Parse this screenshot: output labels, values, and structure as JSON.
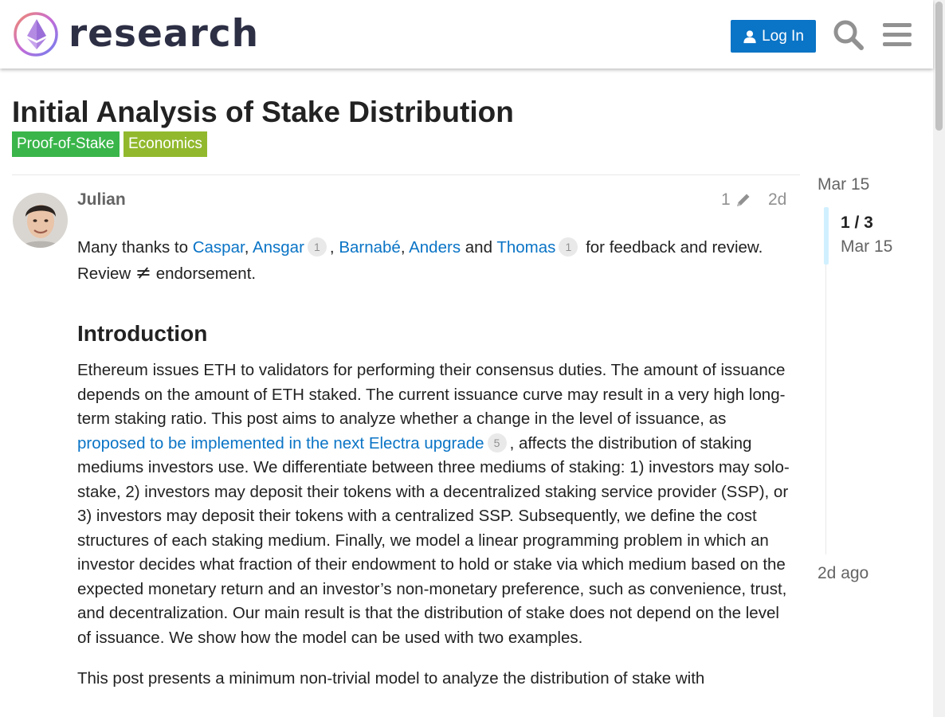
{
  "header": {
    "site_name": "research",
    "login_label": "Log In",
    "icons": {
      "logo": "ethereum-research-logo",
      "login": "user-icon",
      "search": "search-icon",
      "menu": "hamburger-menu-icon"
    },
    "colors": {
      "login_bg": "#0a74c6"
    }
  },
  "topic": {
    "title": "Initial Analysis of Stake Distribution",
    "categories": [
      {
        "label": "Proof-of-Stake",
        "color": "#3ab54a"
      },
      {
        "label": "Economics",
        "color": "#92b92e"
      }
    ]
  },
  "post": {
    "username": "Julian",
    "edit_count": "1",
    "age": "2d",
    "intro": {
      "thanks_prefix": "Many thanks to ",
      "names": [
        "Caspar",
        "Ansgar",
        "Barnabé",
        "Anders",
        "Thomas"
      ],
      "ansgar_badge": "1",
      "thomas_badge": "1",
      "sep_comma": ", ",
      "and": " and ",
      "thanks_suffix": " for feedback and review. Review ",
      "not_equal_symbol": "≠",
      "endorsement": " endorsement."
    },
    "section_heading": "Introduction",
    "para1_before": "Ethereum issues ETH to validators for performing their consensus duties. The amount of issuance depends on the amount of ETH staked. The current issuance curve may result in a very high long-term staking ratio. This post aims to analyze whether a change in the level of issuance, as ",
    "para1_link": "proposed to be implemented in the next Electra upgrade",
    "para1_link_badge": "5",
    "para1_after": ", affects the distribution of staking mediums investors use. We differentiate between three mediums of staking: 1) investors may solo-stake, 2) investors may deposit their tokens with a decentralized staking service provider (SSP), or 3) investors may deposit their tokens with a centralized SSP. Subsequently, we define the cost structures of each staking medium. Finally, we model a linear programming problem in which an investor decides what fraction of their endowment to hold or stake via which medium based on the expected monetary return and an investor’s non-monetary preference, such as convenience, trust, and decentralization. Our main result is that the distribution of stake does not depend on the level of issuance. We show how the model can be used with two examples.",
    "para2": "This post presents a minimum non-trivial model to analyze the distribution of stake with"
  },
  "timeline": {
    "start_date": "Mar 15",
    "position": "1 / 3",
    "current_date": "Mar 15",
    "end_label": "2d ago"
  }
}
